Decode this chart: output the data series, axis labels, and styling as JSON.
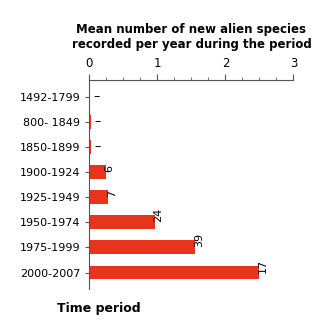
{
  "categories": [
    "1492-1799",
    "800- 1849",
    "1850-1899",
    "1900-1924",
    "1925-1949",
    "1950-1974",
    "1975-1999",
    "2000-2007"
  ],
  "values": [
    0.003,
    0.02,
    0.02,
    0.24,
    0.28,
    0.96,
    1.56,
    2.5
  ],
  "bar_labels": [
    "–",
    "–",
    "–",
    "6",
    "7",
    "24",
    "39",
    "17"
  ],
  "bar_color": "#e8341c",
  "title_line1": "Mean number of new alien species",
  "title_line2": "recorded per year during the period",
  "xlabel": "Time period",
  "xlim": [
    0,
    3
  ],
  "xticks": [
    0,
    1,
    2,
    3
  ],
  "background_color": "#ffffff"
}
